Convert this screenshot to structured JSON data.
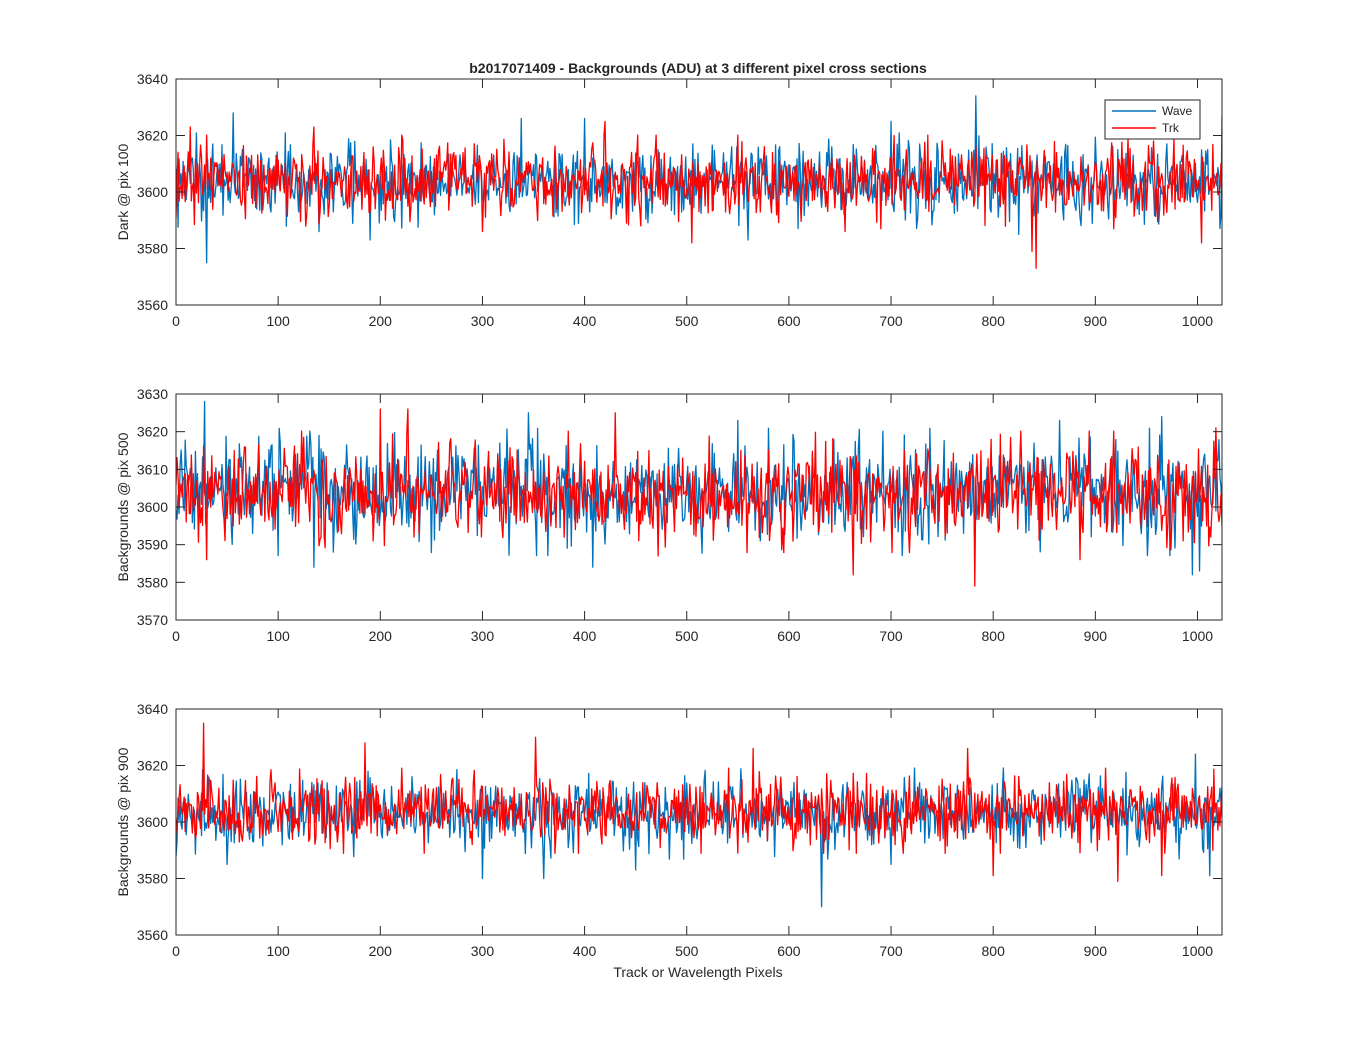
{
  "figure": {
    "title": "b2017071409 - Backgrounds (ADU) at 3 different pixel cross sections",
    "xlabel": "Track or Wavelength Pixels"
  },
  "legend": {
    "placement": "top-right of first panel",
    "entries": [
      {
        "name": "Wave",
        "color": "#0072BD"
      },
      {
        "name": "Trk",
        "color": "#FF0000"
      }
    ]
  },
  "chart_data": [
    {
      "type": "line",
      "title": "b2017071409 - Backgrounds (ADU) at 3 different pixel cross sections",
      "ylabel": "Dark @ pix 100",
      "xlabel": "",
      "xlim": [
        0,
        1024
      ],
      "ylim": [
        3560,
        3640
      ],
      "xticks": [
        0,
        100,
        200,
        300,
        400,
        500,
        600,
        700,
        800,
        900,
        1000
      ],
      "yticks": [
        3560,
        3580,
        3600,
        3620,
        3640
      ],
      "grid": false,
      "series": [
        {
          "name": "Wave",
          "color": "#0072BD",
          "mean": 3604,
          "std": 6.5,
          "x": [
            0,
            30,
            56,
            140,
            190,
            338,
            400,
            488,
            560,
            700,
            783,
            825,
            1024
          ],
          "y": [
            3601,
            3575,
            3628,
            3586,
            3583,
            3626,
            3626,
            3592,
            3583,
            3625,
            3634,
            3585,
            3627
          ]
        },
        {
          "name": "Trk",
          "color": "#FF0000",
          "mean": 3604,
          "std": 6.2,
          "x": [
            0,
            14,
            135,
            205,
            300,
            420,
            455,
            505,
            655,
            690,
            838,
            842,
            918,
            1004
          ],
          "y": [
            3591,
            3623,
            3623,
            3590,
            3586,
            3625,
            3588,
            3582,
            3586,
            3587,
            3579,
            3573,
            3587,
            3582
          ]
        }
      ]
    },
    {
      "type": "line",
      "ylabel": "Backgrounds @ pix 500",
      "xlabel": "",
      "xlim": [
        0,
        1024
      ],
      "ylim": [
        3570,
        3630
      ],
      "xticks": [
        0,
        100,
        200,
        300,
        400,
        500,
        600,
        700,
        800,
        900,
        1000
      ],
      "yticks": [
        3570,
        3580,
        3590,
        3600,
        3610,
        3620,
        3630
      ],
      "grid": false,
      "series": [
        {
          "name": "Wave",
          "color": "#0072BD",
          "mean": 3604,
          "std": 6.5,
          "x": [
            0,
            28,
            135,
            345,
            408,
            550,
            865,
            965,
            995,
            1002
          ],
          "y": [
            3599,
            3628,
            3584,
            3625,
            3584,
            3623,
            3623,
            3624,
            3582,
            3583
          ]
        },
        {
          "name": "Trk",
          "color": "#FF0000",
          "mean": 3604,
          "std": 6.2,
          "x": [
            0,
            30,
            200,
            227,
            430,
            472,
            663,
            782,
            885,
            1018
          ],
          "y": [
            3606,
            3586,
            3626,
            3626,
            3625,
            3587,
            3582,
            3579,
            3586,
            3621
          ]
        }
      ]
    },
    {
      "type": "line",
      "ylabel": "Backgrounds @ pix 900",
      "xlabel": "Track or Wavelength Pixels",
      "xlim": [
        0,
        1024
      ],
      "ylim": [
        3560,
        3640
      ],
      "xticks": [
        0,
        100,
        200,
        300,
        400,
        500,
        600,
        700,
        800,
        900,
        1000
      ],
      "yticks": [
        3560,
        3580,
        3600,
        3620,
        3640
      ],
      "grid": false,
      "series": [
        {
          "name": "Wave",
          "color": "#0072BD",
          "mean": 3603,
          "std": 6.2,
          "x": [
            0,
            50,
            300,
            360,
            450,
            632,
            700,
            998,
            1012
          ],
          "y": [
            3588,
            3585,
            3580,
            3580,
            3583,
            3570,
            3585,
            3624,
            3581
          ]
        },
        {
          "name": "Trk",
          "color": "#FF0000",
          "mean": 3604,
          "std": 5.8,
          "x": [
            0,
            27,
            185,
            352,
            565,
            775,
            800,
            922,
            965
          ],
          "y": [
            3596,
            3635,
            3628,
            3630,
            3626,
            3626,
            3581,
            3579,
            3581
          ]
        }
      ]
    }
  ]
}
